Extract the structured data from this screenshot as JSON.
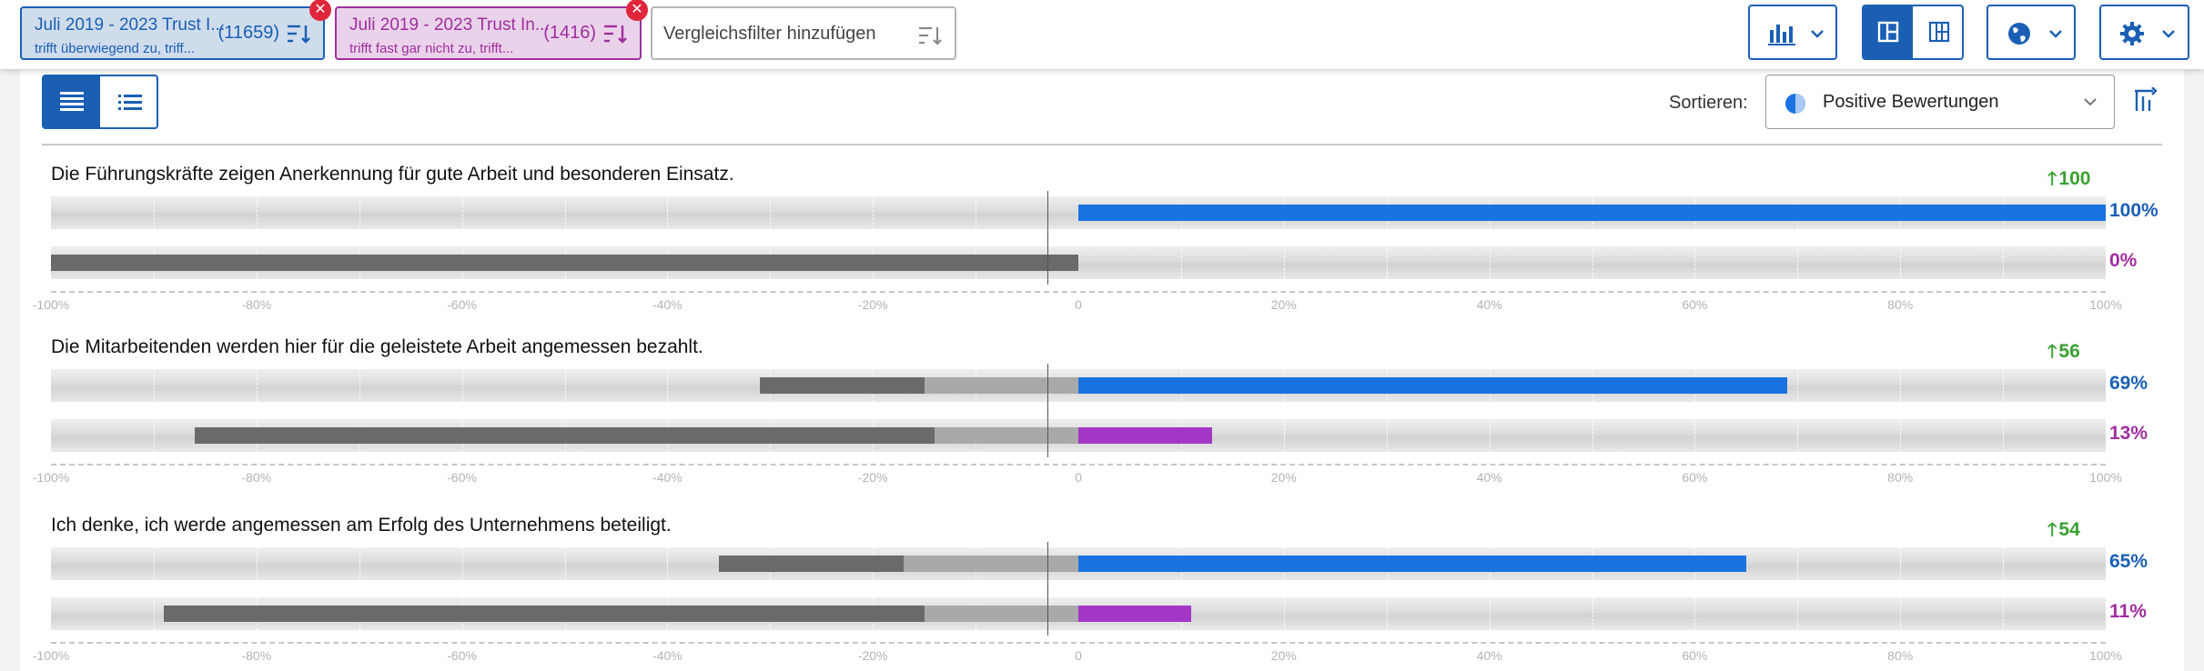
{
  "filters": [
    {
      "title": "Juli 2019 - 2023 Trust I...",
      "subtitle": "trifft überwiegend zu, triff...",
      "count": "(11659)",
      "color": "#1a5fb4"
    },
    {
      "title": "Juli 2019 - 2023 Trust In...",
      "subtitle": "trifft fast gar nicht zu, trifft...",
      "count": "(1416)",
      "color": "#a02ea0"
    }
  ],
  "add_filter": {
    "label": "Vergleichsfilter hinzufügen"
  },
  "toolbar": {
    "chart_type_icon": "bar-chart-icon",
    "layout_icons": [
      "layout-split-icon",
      "layout-grid-icon"
    ],
    "language_icon": "globe-icon",
    "settings_icon": "gear-icon"
  },
  "view_toggle": {
    "active": "detail-list-icon",
    "inactive": "compact-list-icon"
  },
  "sort": {
    "label": "Sortieren:",
    "value": "Positive Bewertungen",
    "icon": "half-circle-icon"
  },
  "axis_ticks": [
    "-100%",
    "-80%",
    "-60%",
    "-40%",
    "-20%",
    "0",
    "20%",
    "40%",
    "60%",
    "80%",
    "100%"
  ],
  "questions": [
    {
      "title": "Die Führungskräfte zeigen Anerkennung für gute Arbeit und besonderen Einsatz.",
      "delta": "100",
      "rows": [
        {
          "label": "100%",
          "positive": 100,
          "neg_light": 0,
          "neg_dark": 0,
          "color": "#1a73e0"
        },
        {
          "label": "0%",
          "positive": 0,
          "neg_light": 0,
          "neg_dark": 100,
          "color": "#a236c6"
        }
      ]
    },
    {
      "title": "Die Mitarbeitenden werden hier für die geleistete Arbeit angemessen bezahlt.",
      "delta": "56",
      "rows": [
        {
          "label": "69%",
          "positive": 69,
          "neg_light": 15,
          "neg_dark": 16,
          "color": "#1a73e0"
        },
        {
          "label": "13%",
          "positive": 13,
          "neg_light": 14,
          "neg_dark": 72,
          "color": "#a236c6"
        }
      ]
    },
    {
      "title": "Ich denke, ich werde angemessen am Erfolg des Unternehmens beteiligt.",
      "delta": "54",
      "rows": [
        {
          "label": "65%",
          "positive": 65,
          "neg_light": 17,
          "neg_dark": 18,
          "color": "#1a73e0"
        },
        {
          "label": "11%",
          "positive": 11,
          "neg_light": 15,
          "neg_dark": 74,
          "color": "#a236c6"
        }
      ]
    }
  ]
}
